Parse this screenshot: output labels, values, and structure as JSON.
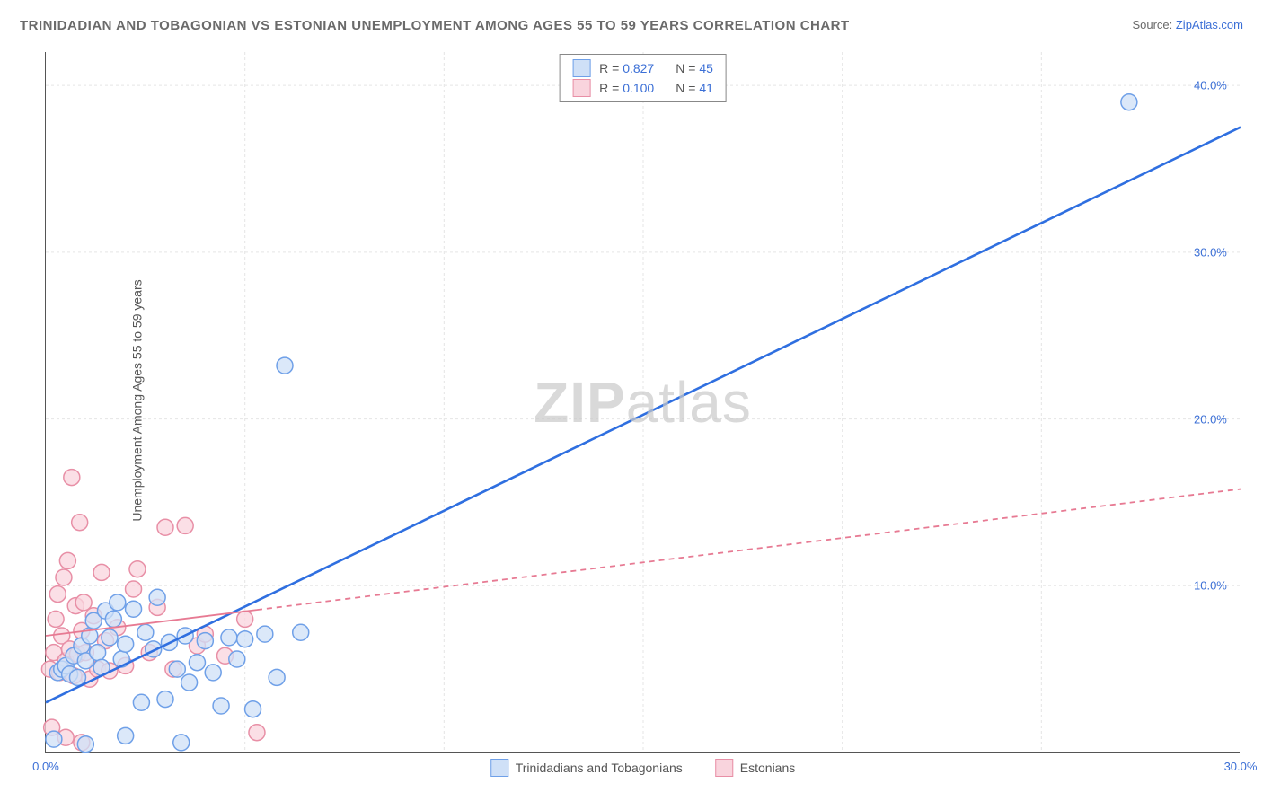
{
  "title": "TRINIDADIAN AND TOBAGONIAN VS ESTONIAN UNEMPLOYMENT AMONG AGES 55 TO 59 YEARS CORRELATION CHART",
  "source_label": "Source: ",
  "source_value": "ZipAtlas.com",
  "y_axis_label": "Unemployment Among Ages 55 to 59 years",
  "watermark_bold": "ZIP",
  "watermark_rest": "atlas",
  "chart": {
    "type": "scatter",
    "background_color": "#ffffff",
    "grid_color": "#e5e5e5",
    "axis_color": "#555555",
    "xlim": [
      0,
      30
    ],
    "ylim": [
      0,
      42
    ],
    "x_ticks": [
      0,
      30
    ],
    "x_tick_labels": [
      "0.0%",
      "30.0%"
    ],
    "x_minor_grid": [
      5,
      10,
      15,
      20,
      25
    ],
    "y_ticks": [
      10,
      20,
      30,
      40
    ],
    "y_tick_labels": [
      "10.0%",
      "20.0%",
      "30.0%",
      "40.0%"
    ],
    "marker_radius": 9,
    "marker_stroke_width": 1.5,
    "series": [
      {
        "name": "Trinidadians and Tobagonians",
        "color_fill": "#cfe0f7",
        "color_stroke": "#6fa0e8",
        "R": "0.827",
        "N": "45",
        "trend": {
          "x1": 0,
          "y1": 3.0,
          "x2": 30,
          "y2": 37.5,
          "color": "#2f6fe0",
          "width": 2.6,
          "dash": "none",
          "solid_until_x": 30
        },
        "points": [
          [
            0.3,
            4.8
          ],
          [
            0.4,
            5.0
          ],
          [
            0.5,
            5.2
          ],
          [
            0.6,
            4.7
          ],
          [
            0.7,
            5.8
          ],
          [
            0.8,
            4.5
          ],
          [
            0.9,
            6.4
          ],
          [
            1.0,
            5.5
          ],
          [
            1.1,
            7.0
          ],
          [
            1.2,
            7.9
          ],
          [
            1.3,
            6.0
          ],
          [
            1.4,
            5.1
          ],
          [
            1.5,
            8.5
          ],
          [
            1.6,
            6.9
          ],
          [
            1.7,
            8.0
          ],
          [
            1.8,
            9.0
          ],
          [
            1.9,
            5.6
          ],
          [
            2.0,
            6.5
          ],
          [
            2.2,
            8.6
          ],
          [
            2.4,
            3.0
          ],
          [
            2.5,
            7.2
          ],
          [
            2.7,
            6.2
          ],
          [
            2.8,
            9.3
          ],
          [
            3.0,
            3.2
          ],
          [
            3.1,
            6.6
          ],
          [
            3.3,
            5.0
          ],
          [
            3.5,
            7.0
          ],
          [
            3.6,
            4.2
          ],
          [
            3.8,
            5.4
          ],
          [
            4.0,
            6.7
          ],
          [
            4.2,
            4.8
          ],
          [
            4.4,
            2.8
          ],
          [
            4.6,
            6.9
          ],
          [
            4.8,
            5.6
          ],
          [
            5.0,
            6.8
          ],
          [
            5.2,
            2.6
          ],
          [
            5.5,
            7.1
          ],
          [
            5.8,
            4.5
          ],
          [
            6.0,
            23.2
          ],
          [
            6.4,
            7.2
          ],
          [
            27.2,
            39.0
          ],
          [
            0.2,
            0.8
          ],
          [
            1.0,
            0.5
          ],
          [
            2.0,
            1.0
          ],
          [
            3.4,
            0.6
          ]
        ]
      },
      {
        "name": "Estonians",
        "color_fill": "#f9d4dd",
        "color_stroke": "#e88fa6",
        "R": "0.100",
        "N": "41",
        "trend": {
          "x1": 0,
          "y1": 7.0,
          "x2": 30,
          "y2": 15.8,
          "color": "#e77a93",
          "width": 1.8,
          "dash": "6,5",
          "solid_until_x": 5.3
        },
        "points": [
          [
            0.1,
            5.0
          ],
          [
            0.2,
            6.0
          ],
          [
            0.25,
            8.0
          ],
          [
            0.3,
            9.5
          ],
          [
            0.35,
            4.8
          ],
          [
            0.4,
            7.0
          ],
          [
            0.45,
            10.5
          ],
          [
            0.5,
            5.5
          ],
          [
            0.55,
            11.5
          ],
          [
            0.6,
            6.2
          ],
          [
            0.65,
            16.5
          ],
          [
            0.7,
            4.6
          ],
          [
            0.75,
            8.8
          ],
          [
            0.8,
            5.9
          ],
          [
            0.85,
            13.8
          ],
          [
            0.9,
            7.3
          ],
          [
            0.95,
            9.0
          ],
          [
            1.0,
            6.0
          ],
          [
            1.1,
            4.4
          ],
          [
            1.2,
            8.2
          ],
          [
            1.3,
            5.0
          ],
          [
            1.4,
            10.8
          ],
          [
            1.5,
            6.7
          ],
          [
            1.6,
            4.9
          ],
          [
            1.8,
            7.5
          ],
          [
            2.0,
            5.2
          ],
          [
            2.2,
            9.8
          ],
          [
            2.3,
            11.0
          ],
          [
            2.6,
            6.0
          ],
          [
            2.8,
            8.7
          ],
          [
            3.0,
            13.5
          ],
          [
            3.2,
            5.0
          ],
          [
            3.5,
            13.6
          ],
          [
            3.8,
            6.4
          ],
          [
            4.0,
            7.1
          ],
          [
            4.5,
            5.8
          ],
          [
            5.0,
            8.0
          ],
          [
            5.3,
            1.2
          ],
          [
            0.15,
            1.5
          ],
          [
            0.5,
            0.9
          ],
          [
            0.9,
            0.6
          ]
        ]
      }
    ]
  },
  "legend_top_rows": [
    {
      "swatch_fill": "#cfe0f7",
      "swatch_stroke": "#6fa0e8",
      "r": "0.827",
      "n": "45"
    },
    {
      "swatch_fill": "#f9d4dd",
      "swatch_stroke": "#e88fa6",
      "r": "0.100",
      "n": "41"
    }
  ],
  "legend_bottom": [
    {
      "swatch_fill": "#cfe0f7",
      "swatch_stroke": "#6fa0e8",
      "label": "Trinidadians and Tobagonians"
    },
    {
      "swatch_fill": "#f9d4dd",
      "swatch_stroke": "#e88fa6",
      "label": "Estonians"
    }
  ],
  "legend_labels": {
    "r_prefix": "R",
    "eq": " = ",
    "n_prefix": "N"
  }
}
